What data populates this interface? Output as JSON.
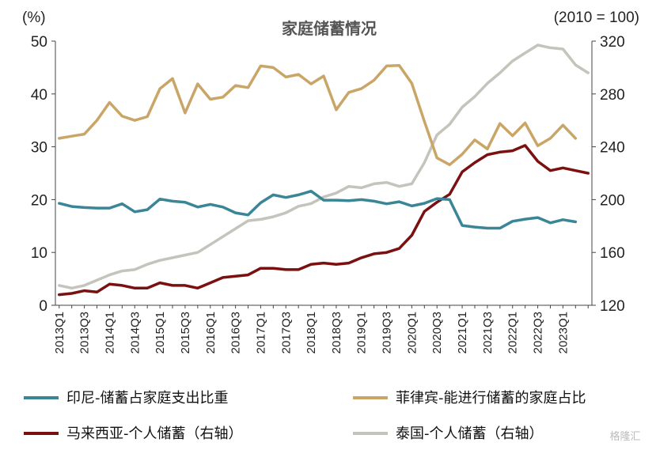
{
  "chart_data": {
    "type": "line",
    "title": "家庭储蓄情况",
    "left_unit": "(%)",
    "right_unit": "(2010 = 100)",
    "ylim_left": [
      0,
      50
    ],
    "ylim_right": [
      120,
      320
    ],
    "yticks_left": [
      "0",
      "10",
      "20",
      "30",
      "40",
      "50"
    ],
    "yticks_right": [
      "120",
      "160",
      "200",
      "240",
      "280",
      "320"
    ],
    "x": [
      "2013Q1",
      "2013Q2",
      "2013Q3",
      "2013Q4",
      "2014Q1",
      "2014Q2",
      "2014Q3",
      "2014Q4",
      "2015Q1",
      "2015Q2",
      "2015Q3",
      "2015Q4",
      "2016Q1",
      "2016Q2",
      "2016Q3",
      "2016Q4",
      "2017Q1",
      "2017Q2",
      "2017Q3",
      "2017Q4",
      "2018Q1",
      "2018Q2",
      "2018Q3",
      "2018Q4",
      "2019Q1",
      "2019Q2",
      "2019Q3",
      "2019Q4",
      "2020Q1",
      "2020Q2",
      "2020Q3",
      "2020Q4",
      "2021Q1",
      "2021Q2",
      "2021Q3",
      "2021Q4",
      "2022Q1",
      "2022Q2",
      "2022Q3",
      "2022Q4",
      "2023Q1",
      "2023Q2",
      "2023Q3"
    ],
    "xtick_labels": [
      "2013Q1",
      "2013Q3",
      "2014Q1",
      "2014Q3",
      "2015Q1",
      "2015Q3",
      "2016Q1",
      "2016Q3",
      "2017Q1",
      "2017Q3",
      "2018Q1",
      "2018Q3",
      "2019Q1",
      "2019Q3",
      "2020Q1",
      "2020Q3",
      "2021Q1",
      "2021Q3",
      "2022Q1",
      "2022Q3",
      "2023Q1"
    ],
    "grid": false,
    "legend_position": "bottom",
    "series": [
      {
        "name": "印尼-储蓄占家庭支出比重",
        "axis": "left",
        "color": "#3a8696",
        "values": [
          19.3,
          18.7,
          18.5,
          18.4,
          18.4,
          19.2,
          17.7,
          18.1,
          20.1,
          19.7,
          19.5,
          18.6,
          19.1,
          18.6,
          17.5,
          17.1,
          19.4,
          20.9,
          20.4,
          20.9,
          21.6,
          19.9,
          19.9,
          19.8,
          20.0,
          19.7,
          19.2,
          19.6,
          18.8,
          19.3,
          20.2,
          20.0,
          15.1,
          14.8,
          14.6,
          14.6,
          15.9,
          16.3,
          16.6,
          15.6,
          16.2,
          15.8,
          null
        ]
      },
      {
        "name": "菲律宾-能进行储蓄的家庭占比",
        "axis": "left",
        "color": "#c9a567",
        "values": [
          31.6,
          32.0,
          32.4,
          35.0,
          38.4,
          35.8,
          35.0,
          35.7,
          41.0,
          42.9,
          36.4,
          41.9,
          39.0,
          39.4,
          41.6,
          41.2,
          45.3,
          45.0,
          43.2,
          43.7,
          41.9,
          43.4,
          37.0,
          40.3,
          41.0,
          42.6,
          45.3,
          45.4,
          42.0,
          34.8,
          27.9,
          26.6,
          28.6,
          31.3,
          29.6,
          34.4,
          32.1,
          34.5,
          30.2,
          31.6,
          34.1,
          31.6,
          null
        ]
      },
      {
        "name": "马来西亚-个人储蓄（右轴）",
        "axis": "right",
        "color": "#7a1010",
        "values": [
          128,
          129,
          131,
          130,
          136,
          135,
          133,
          133,
          137,
          135,
          135,
          133,
          137,
          141,
          142,
          143,
          148,
          148,
          147,
          147,
          151,
          152,
          151,
          152,
          156,
          159,
          160,
          163,
          173,
          191,
          198,
          204,
          221,
          228,
          234,
          236,
          237,
          241,
          229,
          222,
          224,
          222,
          220
        ]
      },
      {
        "name": "泰国-个人储蓄（右轴）",
        "axis": "right",
        "color": "#c5c4bc",
        "values": [
          135,
          133,
          135,
          139,
          143,
          146,
          147,
          151,
          154,
          156,
          158,
          160,
          166,
          172,
          178,
          184,
          185,
          187,
          190,
          195,
          197,
          202,
          205,
          210,
          209,
          212,
          213,
          210,
          212,
          228,
          249,
          257,
          270,
          278,
          288,
          296,
          305,
          311,
          317,
          315,
          314,
          302,
          296
        ]
      }
    ],
    "watermark": "格隆汇"
  }
}
